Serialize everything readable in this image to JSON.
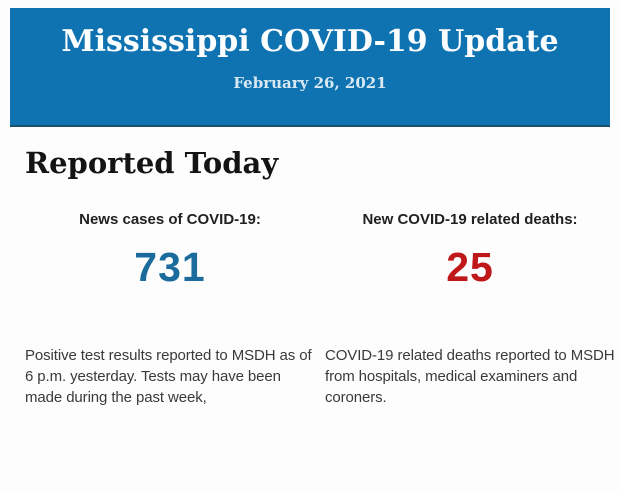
{
  "header": {
    "title": "Mississippi COVID-19 Update",
    "date": "February 26, 2021",
    "background_color": "#0f73b1",
    "title_color": "#fcfeff"
  },
  "section": {
    "heading": "Reported Today"
  },
  "stats": {
    "cases": {
      "label": "News cases of COVID-19:",
      "value": "731",
      "value_color": "#1b6c9d",
      "description": "Positive test results reported to MSDH as of 6 p.m. yesterday. Tests may have been made during the past week,"
    },
    "deaths": {
      "label": "New COVID-19 related deaths:",
      "value": "25",
      "value_color": "#c01718",
      "description": "COVID-19 related deaths reported to MSDH from hospitals, medical examiners and coroners."
    }
  }
}
